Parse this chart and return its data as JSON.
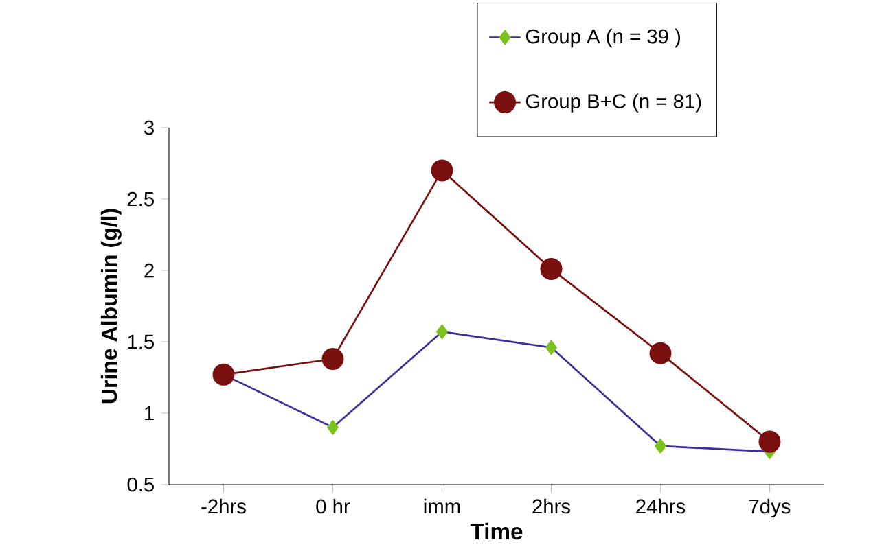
{
  "chart_data": {
    "type": "line",
    "xlabel": "Time",
    "ylabel": "Urine Albumin (g/l)",
    "categories": [
      "-2hrs",
      "0 hr",
      "imm",
      "2hrs",
      "24hrs",
      "7dys"
    ],
    "series": [
      {
        "name": "Group A (n = 39 )",
        "color": "#3b2f9c",
        "marker": "diamond",
        "colors": [
          "#7cc21f",
          "#7cc21f",
          "#7cc21f",
          "#7cc21f",
          "#7cc21f",
          "#7cc21f"
        ],
        "values": [
          1.27,
          0.9,
          1.57,
          1.46,
          0.77,
          0.73
        ]
      },
      {
        "name": "Group B+C (n = 81)",
        "color": "#7b1010",
        "marker": "circle",
        "values": [
          1.27,
          1.38,
          2.7,
          2.01,
          1.42,
          0.8
        ]
      }
    ],
    "ylim": [
      0.5,
      3
    ],
    "yticks": [
      0.5,
      1,
      1.5,
      2,
      2.5,
      3
    ],
    "grid": false,
    "legend": "top right"
  }
}
